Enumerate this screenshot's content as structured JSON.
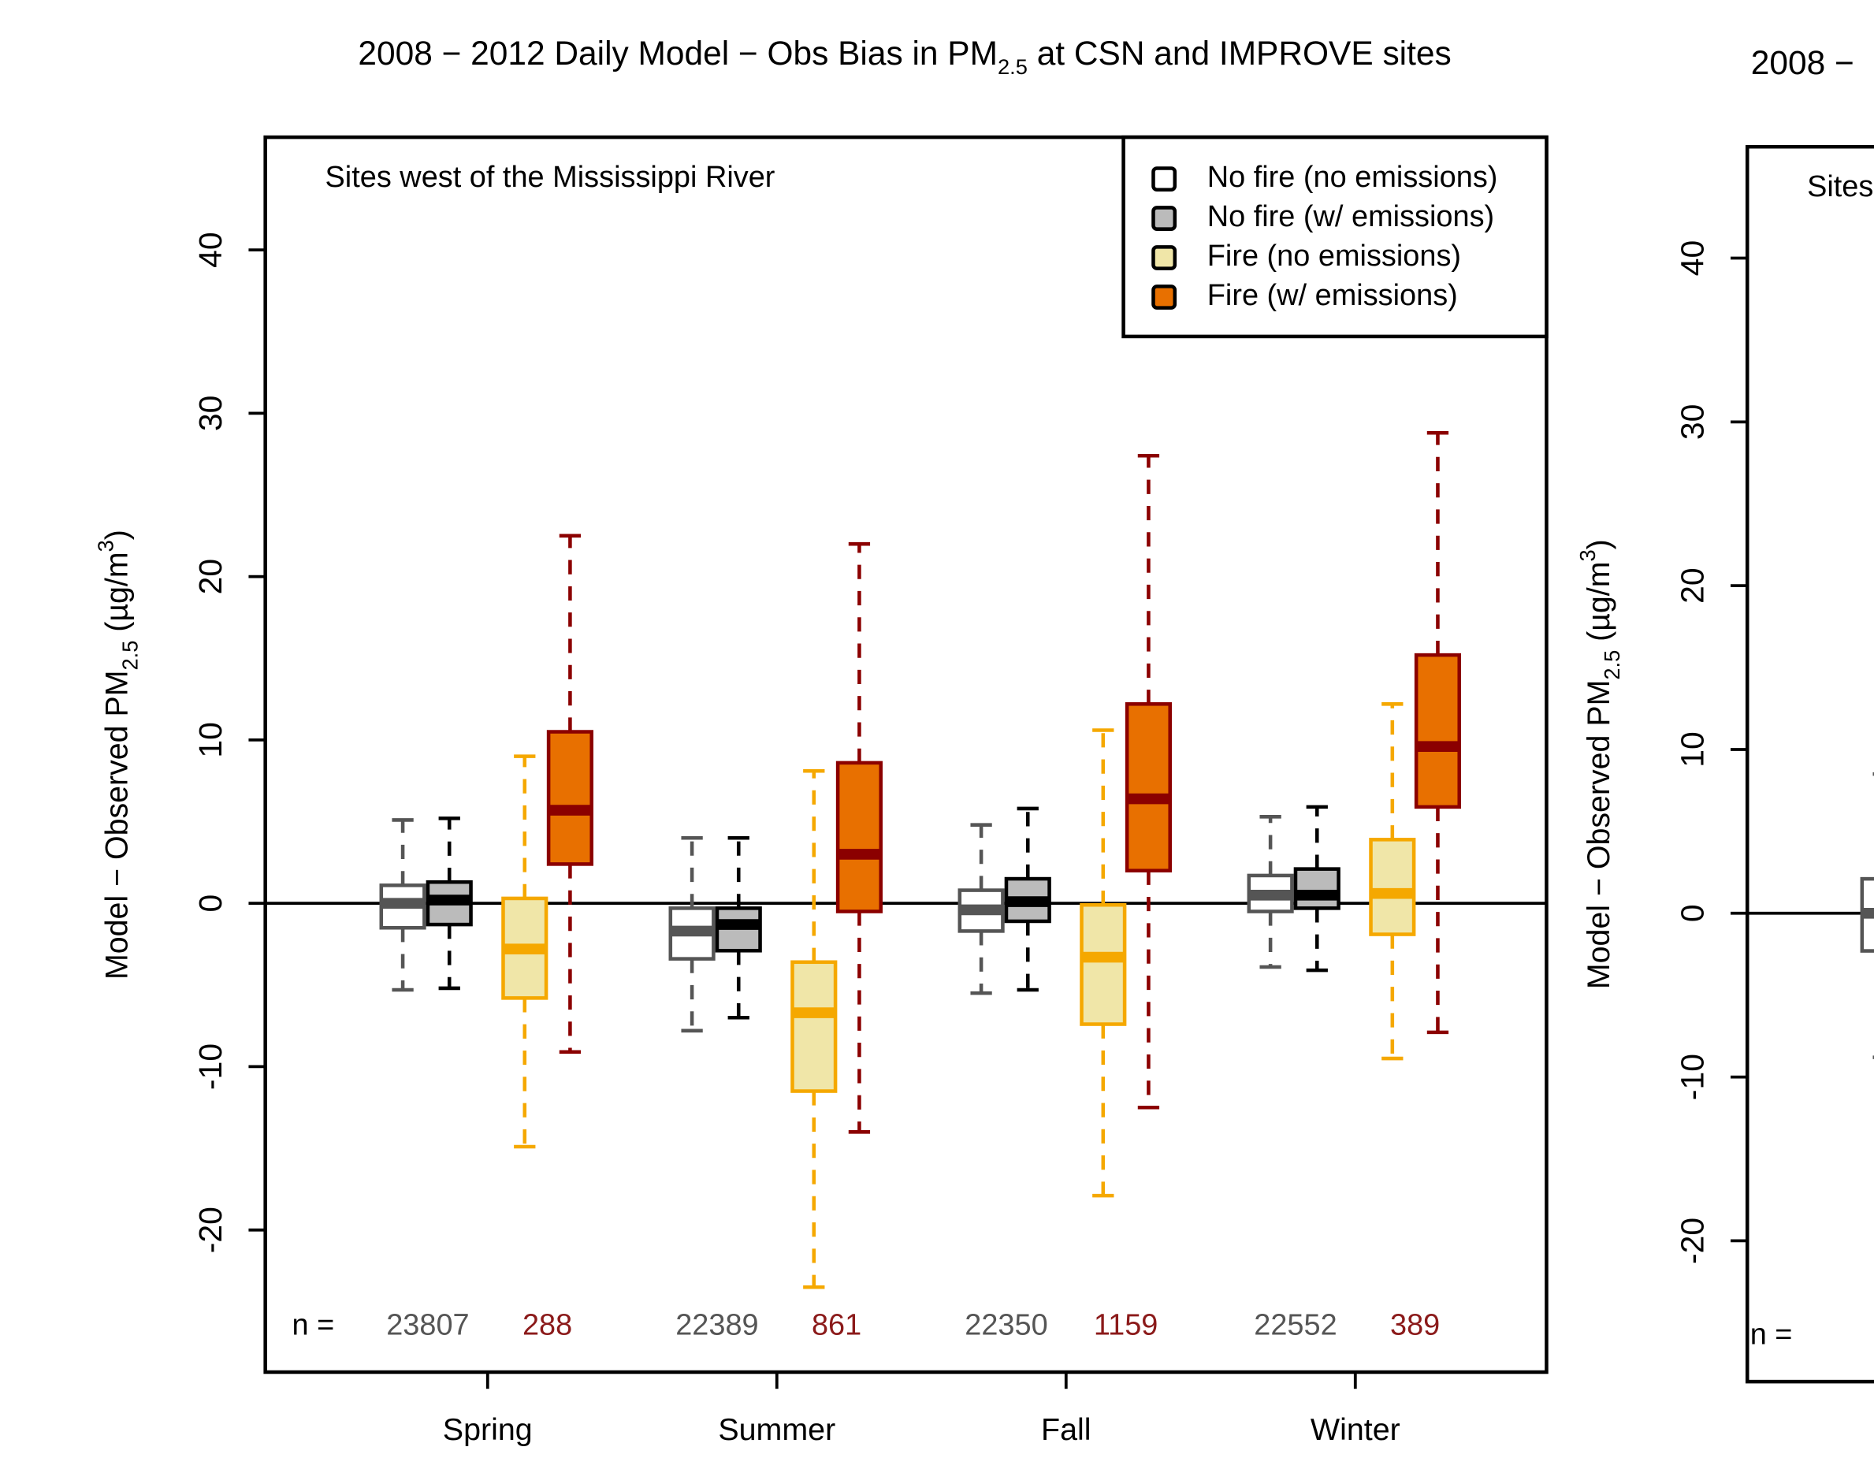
{
  "chart_data": [
    {
      "type": "box",
      "title": [
        "2008 − 2012 Daily Model − Obs Bias in PM",
        "2.5",
        " at CSN and IMPROVE sites"
      ],
      "annotation": "Sites west of the Mississippi River",
      "y_label": [
        "Model − Observed PM",
        "2.5",
        " (µg/m",
        "3",
        ")"
      ],
      "categories": [
        "Spring",
        "Summer",
        "Fall",
        "Winter"
      ],
      "ylim": [
        -28.7,
        46.9
      ],
      "yticks": [
        -20,
        -10,
        0,
        10,
        20,
        30,
        40
      ],
      "reference_line": 0,
      "legend": "top-right",
      "sample_sizes": {
        "label": "n =",
        "no_fire": [
          23807,
          22389,
          22350,
          22552
        ],
        "fire": [
          288,
          861,
          1159,
          389
        ],
        "no_fire_color": "#555555",
        "fire_color": "#8b1a1a"
      },
      "series": [
        {
          "name": "No fire (no emissions)",
          "color": "#ffffff",
          "edge": "#555555",
          "whisker_low": [
            -5.3,
            -7.8,
            -5.5,
            -3.9
          ],
          "q1": [
            -1.5,
            -3.4,
            -1.7,
            -0.5
          ],
          "median": [
            0,
            -1.7,
            -0.4,
            0.5
          ],
          "q3": [
            1.1,
            -0.3,
            0.8,
            1.7
          ],
          "whisker_high": [
            5.1,
            4.0,
            4.8,
            5.3
          ]
        },
        {
          "name": "No fire (w/ emissions)",
          "color": "#bbbbbb",
          "edge": "#000000",
          "whisker_low": [
            -5.2,
            -7.0,
            -5.3,
            -4.1
          ],
          "q1": [
            -1.3,
            -2.9,
            -1.1,
            -0.3
          ],
          "median": [
            0.2,
            -1.3,
            0.1,
            0.5
          ],
          "q3": [
            1.3,
            -0.3,
            1.5,
            2.1
          ],
          "whisker_high": [
            5.2,
            4.0,
            5.8,
            5.9
          ]
        },
        {
          "name": "Fire (no emissions)",
          "color": "#f0e6a8",
          "edge": "#f5a800",
          "whisker_low": [
            -14.9,
            -23.5,
            -17.9,
            -9.5
          ],
          "q1": [
            -5.8,
            -11.5,
            -7.4,
            -1.9
          ],
          "median": [
            -2.8,
            -6.7,
            -3.3,
            0.6
          ],
          "q3": [
            0.3,
            -3.6,
            -0.1,
            3.9
          ],
          "whisker_high": [
            9.0,
            8.1,
            10.6,
            12.2
          ]
        },
        {
          "name": "Fire (w/ emissions)",
          "color": "#e87000",
          "edge": "#8b0000",
          "whisker_low": [
            -9.1,
            -14.0,
            -12.5,
            -7.9
          ],
          "q1": [
            2.4,
            -0.5,
            2.0,
            5.9
          ],
          "median": [
            5.7,
            3.0,
            6.4,
            9.6
          ],
          "q3": [
            10.5,
            8.6,
            12.2,
            15.2
          ],
          "whisker_high": [
            22.5,
            22.0,
            27.4,
            28.8
          ]
        }
      ]
    },
    {
      "type": "box",
      "title": [
        "2008 −"
      ],
      "annotation": "Sites",
      "y_label": [
        "Model − Observed PM",
        "2.5",
        " (µg/m",
        "3",
        ")"
      ],
      "ylim": [
        -28.6,
        46.8
      ],
      "yticks": [
        -20,
        -10,
        0,
        10,
        20,
        30,
        40
      ],
      "reference_line": 0,
      "sample_sizes": {
        "label": "n ="
      },
      "series": [
        {
          "color": "#ffffff",
          "edge": "#555555",
          "whisker_low": [
            -8.8
          ],
          "q1": [
            -2.3
          ],
          "median": [
            0
          ],
          "q3": [
            2.1
          ],
          "whisker_high": [
            8.5
          ]
        }
      ]
    }
  ]
}
